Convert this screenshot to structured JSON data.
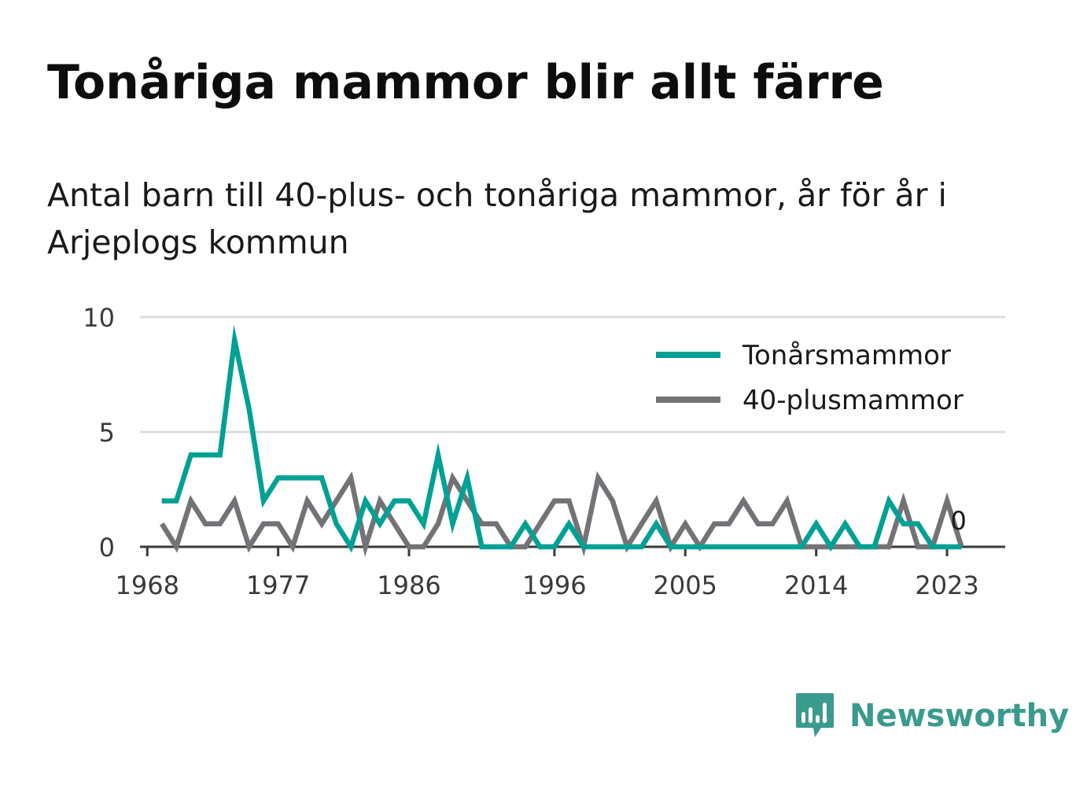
{
  "title": "Tonåriga mammor blir allt färre",
  "subtitle": "Antal barn till 40-plus- och tonåriga mammor, år för år i Arjeplogs kommun",
  "brand": {
    "name": "Newsworthy",
    "icon": "newsworthy-logo-icon",
    "color": "#3a9a8e"
  },
  "chart_data": {
    "type": "line",
    "x": [
      1969,
      1970,
      1971,
      1972,
      1973,
      1974,
      1975,
      1976,
      1977,
      1978,
      1979,
      1980,
      1981,
      1982,
      1983,
      1984,
      1985,
      1986,
      1987,
      1988,
      1989,
      1990,
      1991,
      1992,
      1993,
      1994,
      1995,
      1996,
      1997,
      1998,
      1999,
      2000,
      2001,
      2002,
      2003,
      2004,
      2005,
      2006,
      2007,
      2008,
      2009,
      2010,
      2011,
      2012,
      2013,
      2014,
      2015,
      2016,
      2017,
      2018,
      2019,
      2020,
      2021,
      2022,
      2023,
      2024
    ],
    "series": [
      {
        "name": "Tonårsmammor",
        "color": "#00a194",
        "values": [
          2,
          2,
          4,
          4,
          4,
          9,
          6,
          2,
          3,
          3,
          3,
          3,
          1,
          0,
          2,
          1,
          2,
          2,
          1,
          4,
          1,
          3,
          0,
          0,
          0,
          1,
          0,
          0,
          1,
          0,
          0,
          0,
          0,
          0,
          1,
          0,
          0,
          0,
          0,
          0,
          0,
          0,
          0,
          0,
          0,
          1,
          0,
          1,
          0,
          0,
          2,
          1,
          1,
          0,
          0,
          0
        ]
      },
      {
        "name": "40-plusmammor",
        "color": "#737377",
        "values": [
          1,
          0,
          2,
          1,
          1,
          2,
          0,
          1,
          1,
          0,
          2,
          1,
          2,
          3,
          0,
          2,
          1,
          0,
          0,
          1,
          3,
          2,
          1,
          1,
          0,
          0,
          1,
          2,
          2,
          0,
          3,
          2,
          0,
          1,
          2,
          0,
          1,
          0,
          1,
          1,
          2,
          1,
          1,
          2,
          0,
          0,
          0,
          0,
          0,
          0,
          0,
          2,
          0,
          0,
          2,
          0
        ]
      }
    ],
    "xticks": [
      1968,
      1977,
      1986,
      1996,
      2005,
      2014,
      2023
    ],
    "xlim": [
      1967.5,
      2027
    ],
    "yticks": [
      0,
      5,
      10
    ],
    "ylim": [
      0,
      10
    ],
    "grid": true,
    "legend_position": "top-right",
    "end_label": "0",
    "end_label_color": "#1a1a1a",
    "grid_color": "#dcdcdc",
    "axis_color": "#3a3a3a"
  }
}
